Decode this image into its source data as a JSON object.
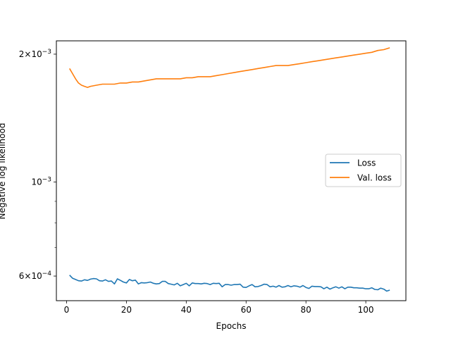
{
  "chart_data": {
    "type": "line",
    "xlabel": "Epochs",
    "ylabel": "Negative log likelihood",
    "yscale": "log",
    "xlim": [
      -3.4,
      113.4
    ],
    "ylim": [
      0.000525,
      0.00215
    ],
    "grid": false,
    "legend_position": "center-right",
    "x_ticks": [
      0,
      20,
      40,
      60,
      80,
      100
    ],
    "x_tick_labels": [
      "0",
      "20",
      "40",
      "60",
      "80",
      "100"
    ],
    "y_ticks": [
      {
        "value": 0.002,
        "base": "2×10",
        "exp": "−3"
      },
      {
        "value": 0.001,
        "base": "10",
        "exp": "−3"
      },
      {
        "value": 0.0006,
        "base": "6×10",
        "exp": "−4"
      }
    ],
    "series": [
      {
        "name": "Loss",
        "color": "#1f77b4",
        "x": [
          1,
          2,
          3,
          4,
          5,
          6,
          7,
          8,
          9,
          10,
          11,
          12,
          13,
          14,
          15,
          16,
          17,
          18,
          19,
          20,
          21,
          22,
          23,
          24,
          25,
          26,
          27,
          28,
          29,
          30,
          31,
          32,
          33,
          34,
          35,
          36,
          37,
          38,
          39,
          40,
          41,
          42,
          43,
          44,
          45,
          46,
          47,
          48,
          49,
          50,
          51,
          52,
          53,
          54,
          55,
          56,
          57,
          58,
          59,
          60,
          61,
          62,
          63,
          64,
          65,
          66,
          67,
          68,
          69,
          70,
          71,
          72,
          73,
          74,
          75,
          76,
          77,
          78,
          79,
          80,
          81,
          82,
          83,
          84,
          85,
          86,
          87,
          88,
          89,
          90,
          91,
          92,
          93,
          94,
          95,
          96,
          97,
          98,
          99,
          100,
          101,
          102,
          103,
          104,
          105,
          106,
          107,
          108
        ],
        "values": [
          0.000603,
          0.000593,
          0.000589,
          0.000585,
          0.000584,
          0.000588,
          0.000586,
          0.00059,
          0.000592,
          0.000591,
          0.000585,
          0.000584,
          0.000588,
          0.000583,
          0.000584,
          0.000575,
          0.000591,
          0.000586,
          0.000581,
          0.000578,
          0.000589,
          0.000585,
          0.000587,
          0.000575,
          0.000579,
          0.000578,
          0.000579,
          0.000581,
          0.000577,
          0.000575,
          0.000576,
          0.000583,
          0.000583,
          0.000576,
          0.000574,
          0.000572,
          0.000577,
          0.000569,
          0.000573,
          0.000577,
          0.000569,
          0.000578,
          0.000576,
          0.000576,
          0.000575,
          0.000577,
          0.000576,
          0.000573,
          0.000577,
          0.000576,
          0.000577,
          0.000566,
          0.000573,
          0.000573,
          0.000571,
          0.000573,
          0.000573,
          0.000574,
          0.000565,
          0.000564,
          0.000569,
          0.000573,
          0.000566,
          0.000567,
          0.00057,
          0.000574,
          0.000573,
          0.000566,
          0.000568,
          0.000565,
          0.00057,
          0.000565,
          0.000566,
          0.00057,
          0.000566,
          0.000569,
          0.000568,
          0.000565,
          0.00057,
          0.000564,
          0.000561,
          0.000568,
          0.000567,
          0.000567,
          0.000566,
          0.00056,
          0.000565,
          0.000559,
          0.000563,
          0.000566,
          0.000562,
          0.000566,
          0.00056,
          0.000565,
          0.000565,
          0.000563,
          0.000563,
          0.000562,
          0.000562,
          0.00056,
          0.00056,
          0.000563,
          0.000558,
          0.000557,
          0.000562,
          0.000559,
          0.000553,
          0.000556
        ]
      },
      {
        "name": "Val. loss",
        "color": "#ff7f0e",
        "x": [
          1,
          2,
          3,
          4,
          5,
          6,
          7,
          8,
          10,
          12,
          14,
          16,
          18,
          20,
          22,
          24,
          26,
          28,
          30,
          32,
          34,
          36,
          38,
          40,
          42,
          44,
          46,
          48,
          50,
          52,
          54,
          56,
          58,
          60,
          62,
          64,
          66,
          68,
          70,
          72,
          74,
          76,
          78,
          80,
          82,
          84,
          86,
          88,
          90,
          92,
          94,
          96,
          98,
          100,
          102,
          104,
          106,
          108
        ],
        "values": [
          0.00185,
          0.0018,
          0.00175,
          0.00171,
          0.00169,
          0.00168,
          0.00167,
          0.00168,
          0.00169,
          0.0017,
          0.0017,
          0.0017,
          0.00171,
          0.00171,
          0.00172,
          0.00172,
          0.00173,
          0.00174,
          0.00175,
          0.00175,
          0.00175,
          0.00175,
          0.00175,
          0.00176,
          0.00176,
          0.00177,
          0.00177,
          0.00177,
          0.00178,
          0.00179,
          0.0018,
          0.00181,
          0.00182,
          0.00183,
          0.00184,
          0.00185,
          0.00186,
          0.00187,
          0.00188,
          0.00188,
          0.00188,
          0.00189,
          0.0019,
          0.00191,
          0.00192,
          0.00193,
          0.00194,
          0.00195,
          0.00196,
          0.00197,
          0.00198,
          0.00199,
          0.002,
          0.00201,
          0.00202,
          0.00204,
          0.00205,
          0.00207
        ]
      }
    ]
  }
}
